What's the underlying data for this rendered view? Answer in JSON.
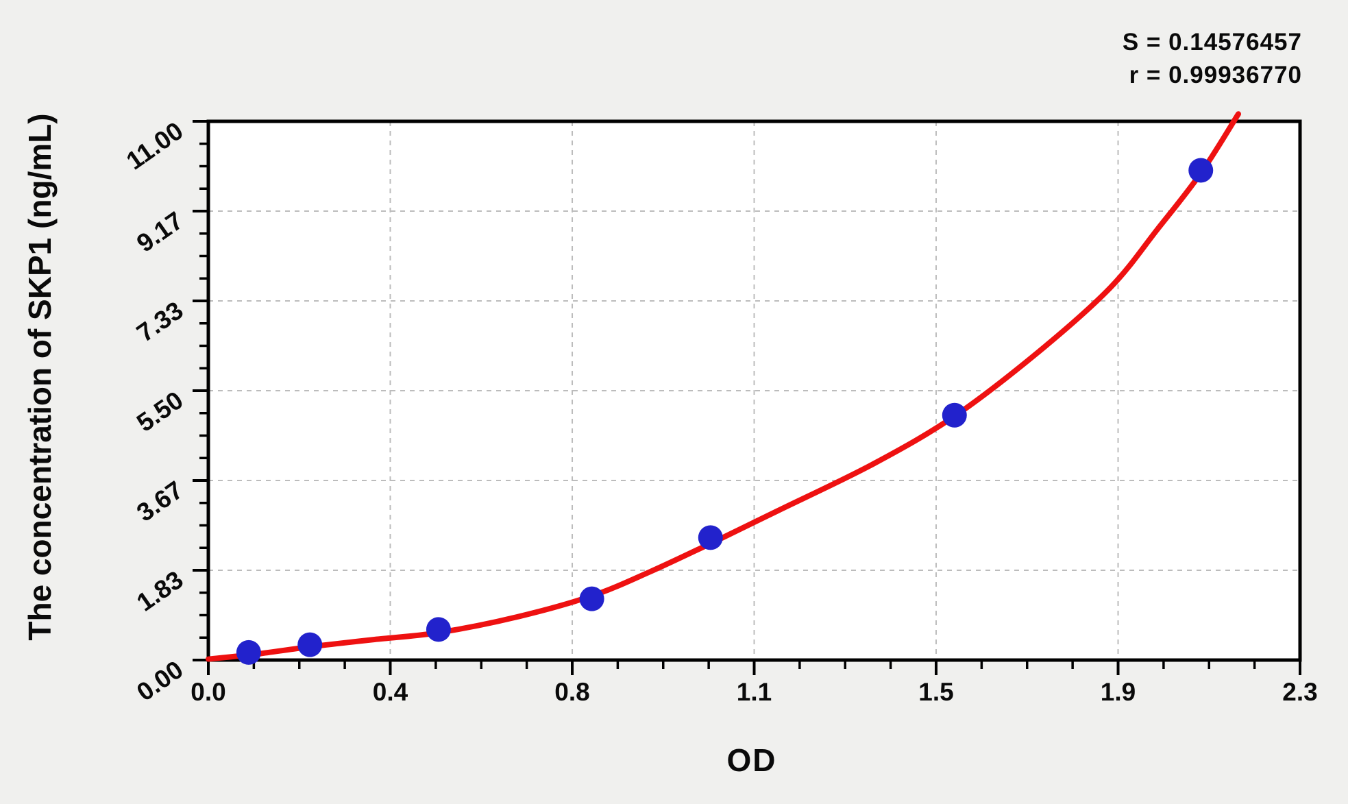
{
  "annotation": {
    "s_label": "S = 0.14576457",
    "r_label": "r = 0.99936770"
  },
  "chart_data": {
    "type": "scatter",
    "title": "",
    "xlabel": "OD",
    "ylabel": "The concentration of SKP1 (ng/mL)",
    "xlim": [
      0,
      2.3
    ],
    "ylim": [
      0,
      11
    ],
    "x_major_ticks": [
      0,
      0.3833,
      0.7667,
      1.15,
      1.5333,
      1.9167,
      2.3
    ],
    "x_tick_labels": [
      "0.0",
      "0.4",
      "0.8",
      "1.1",
      "1.5",
      "1.9",
      "2.3"
    ],
    "y_major_ticks": [
      0,
      1.8333,
      3.6667,
      5.5,
      7.3333,
      9.1667,
      11
    ],
    "y_tick_labels": [
      "0.00",
      "1.83",
      "3.67",
      "5.50",
      "7.33",
      "9.17",
      "11.00"
    ],
    "minor_divisions_per_major": 4,
    "grid": {
      "style": "dashed",
      "at": "major-ticks",
      "color": "#bcbcbc"
    },
    "legend": "none",
    "points": [
      {
        "od": 0.085,
        "conc": 0.156
      },
      {
        "od": 0.214,
        "conc": 0.313
      },
      {
        "od": 0.485,
        "conc": 0.625
      },
      {
        "od": 0.808,
        "conc": 1.25
      },
      {
        "od": 1.058,
        "conc": 2.5
      },
      {
        "od": 1.572,
        "conc": 5.0
      },
      {
        "od": 2.091,
        "conc": 10.0
      }
    ],
    "fit_curve": {
      "S": 0.14576457,
      "r": 0.9993677,
      "samples": [
        {
          "od": 0.0,
          "conc": 0.02
        },
        {
          "od": 0.1,
          "conc": 0.12
        },
        {
          "od": 0.214,
          "conc": 0.27
        },
        {
          "od": 0.35,
          "conc": 0.42
        },
        {
          "od": 0.485,
          "conc": 0.56
        },
        {
          "od": 0.65,
          "conc": 0.88
        },
        {
          "od": 0.808,
          "conc": 1.31
        },
        {
          "od": 0.93,
          "conc": 1.8
        },
        {
          "od": 1.058,
          "conc": 2.38
        },
        {
          "od": 1.2,
          "conc": 3.05
        },
        {
          "od": 1.4,
          "conc": 4.0
        },
        {
          "od": 1.572,
          "conc": 4.98
        },
        {
          "od": 1.75,
          "conc": 6.3
        },
        {
          "od": 1.9,
          "conc": 7.6
        },
        {
          "od": 2.0,
          "conc": 8.8
        },
        {
          "od": 2.091,
          "conc": 9.94
        },
        {
          "od": 2.17,
          "conc": 11.15
        }
      ]
    },
    "colors": {
      "point": "#2222cc",
      "curve": "#ee1111",
      "grid": "#bcbcbc",
      "axis": "#000000",
      "plot_bg": "#ffffff",
      "page_bg": "#f0f0ee",
      "text": "#0a0a0a"
    }
  }
}
